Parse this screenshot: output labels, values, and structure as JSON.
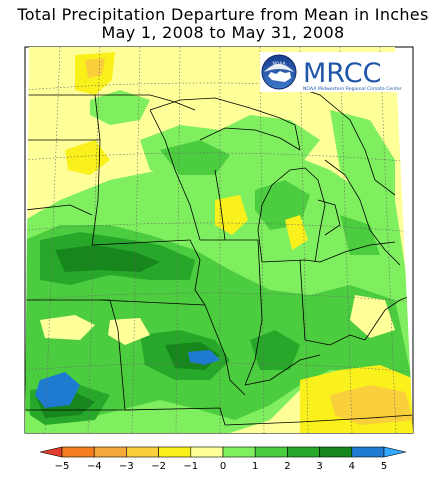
{
  "title": {
    "line1": "Total Precipitation Departure from Mean in Inches",
    "line2": "May 1, 2008 to May 31, 2008"
  },
  "logo": {
    "name": "MRCC",
    "subtitle": "NOAA Midwestern Regional Climate Center",
    "emblem_text": "NOAA"
  },
  "legend": {
    "ticks": [
      "-5",
      "-4",
      "-3",
      "-2",
      "-1",
      "0",
      "1",
      "2",
      "3",
      "4",
      "5"
    ],
    "colors": [
      "#e23c2a",
      "#f57f1e",
      "#f7a83a",
      "#f9cf3b",
      "#f9f01c",
      "#ffff99",
      "#7fef5f",
      "#4ccc3f",
      "#28a82a",
      "#16861d",
      "#1e7bd1",
      "#33a8ff"
    ]
  },
  "colors": {
    "dry_moderate": "#f9cf3b",
    "dry_light": "#f9f01c",
    "near_normal": "#ffff99",
    "wet_light": "#7fef5f",
    "wet_moderate": "#4ccc3f",
    "wet_heavy": "#28a82a",
    "wet_very_heavy": "#16861d",
    "wet_extreme": "#1e7bd1"
  }
}
